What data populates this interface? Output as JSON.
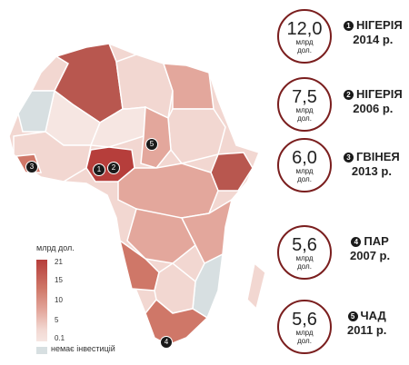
{
  "legend": {
    "title": "млрд дол.",
    "ticks": [
      "21",
      "15",
      "10",
      "5",
      "0.1"
    ],
    "no_data": "немає інвестицій"
  },
  "items": [
    {
      "num": "1",
      "value": "12,0",
      "unit": "млрд",
      "unit2": "дол.",
      "country": "НІГЕРІЯ",
      "year": "2014 р."
    },
    {
      "num": "2",
      "value": "7,5",
      "unit": "млрд",
      "unit2": "дол.",
      "country": "НІГЕРІЯ",
      "year": "2006 р."
    },
    {
      "num": "3",
      "value": "6,0",
      "unit": "млрд",
      "unit2": "дол.",
      "country": "ГВІНЕЯ",
      "year": "2013 р."
    },
    {
      "num": "4",
      "value": "5,6",
      "unit": "млрд",
      "unit2": "дол.",
      "country": "ПАР",
      "year": "2007 р."
    },
    {
      "num": "5",
      "value": "5,6",
      "unit": "млрд",
      "unit2": "дол.",
      "country": "ЧАД",
      "year": "2011 р."
    }
  ],
  "colors": {
    "max": "#b63e3b",
    "high": "#cf7768",
    "mid": "#e3a79c",
    "low": "#f2d7d1",
    "no_data": "#d7dfe1",
    "badge_border": "#7a1e1e"
  }
}
